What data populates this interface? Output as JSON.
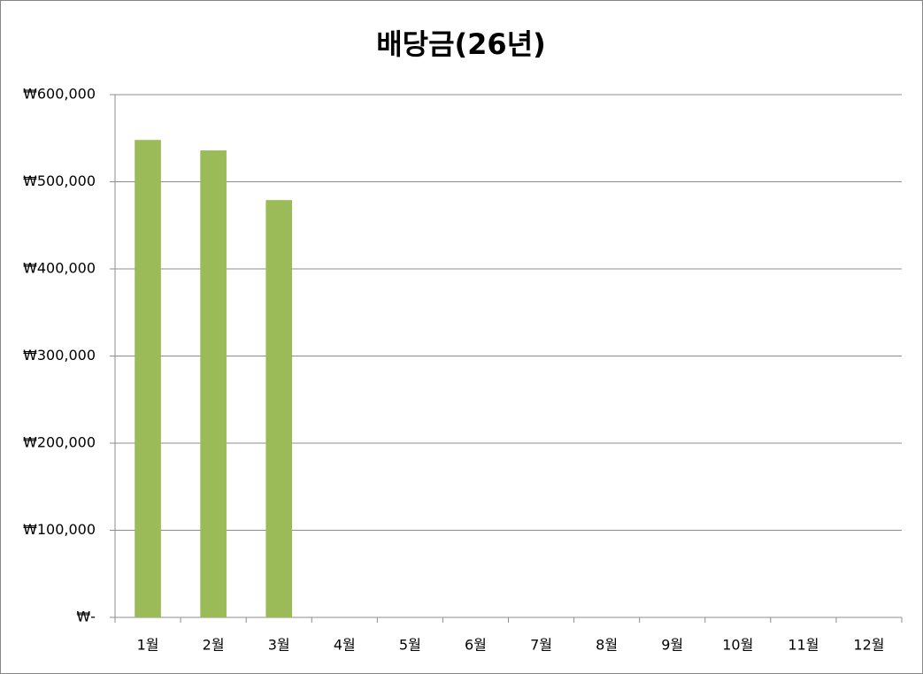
{
  "chart_data": {
    "type": "bar",
    "title": "배당금(26년)",
    "categories": [
      "1월",
      "2월",
      "3월",
      "4월",
      "5월",
      "6월",
      "7월",
      "8월",
      "9월",
      "10월",
      "11월",
      "12월"
    ],
    "values": [
      548000,
      536000,
      479000,
      null,
      null,
      null,
      null,
      null,
      null,
      null,
      null,
      null
    ],
    "color": "#9bbb59",
    "ylim": [
      0,
      600000
    ],
    "yticks": [
      {
        "value": 0,
        "label": "₩-"
      },
      {
        "value": 100000,
        "label": "₩100,000"
      },
      {
        "value": 200000,
        "label": "₩200,000"
      },
      {
        "value": 300000,
        "label": "₩300,000"
      },
      {
        "value": 400000,
        "label": "₩400,000"
      },
      {
        "value": 500000,
        "label": "₩500,000"
      },
      {
        "value": 600000,
        "label": "₩600,000"
      }
    ],
    "grid": true
  }
}
